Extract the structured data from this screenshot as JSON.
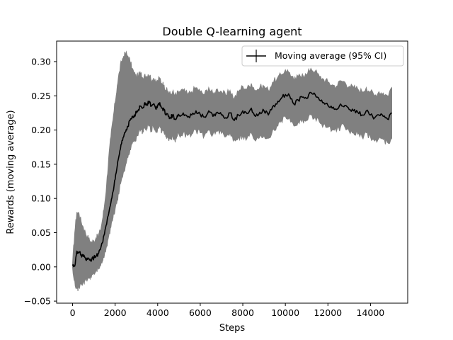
{
  "chart_data": {
    "type": "line",
    "title": "Double Q-learning agent",
    "xlabel": "Steps",
    "ylabel": "Rewards (moving average)",
    "xlim": [
      -750,
      15750
    ],
    "ylim": [
      -0.053,
      0.33
    ],
    "xticks": [
      0,
      2000,
      4000,
      6000,
      8000,
      10000,
      12000,
      14000
    ],
    "yticks": [
      -0.05,
      0.0,
      0.05,
      0.1,
      0.15,
      0.2,
      0.25,
      0.3
    ],
    "xtick_labels": [
      "0",
      "2000",
      "4000",
      "6000",
      "8000",
      "10000",
      "12000",
      "14000"
    ],
    "ytick_labels": [
      "−0.05",
      "0.00",
      "0.05",
      "0.10",
      "0.15",
      "0.20",
      "0.25",
      "0.30"
    ],
    "grid": false,
    "legend_position": "top-right",
    "colors": {
      "line": "#000000",
      "band": "#808080"
    },
    "series": [
      {
        "name": "Moving average (95% CI)",
        "x": [
          0,
          100,
          200,
          300,
          400,
          500,
          600,
          700,
          800,
          900,
          1000,
          1100,
          1200,
          1300,
          1400,
          1500,
          1600,
          1700,
          1800,
          1900,
          2000,
          2100,
          2200,
          2300,
          2400,
          2500,
          2600,
          2700,
          2800,
          2900,
          3000,
          3100,
          3200,
          3300,
          3400,
          3500,
          3600,
          3700,
          3800,
          3900,
          4000,
          4100,
          4200,
          4300,
          4400,
          4500,
          4600,
          4700,
          4800,
          4900,
          5000,
          5200,
          5400,
          5600,
          5800,
          6000,
          6200,
          6400,
          6600,
          6800,
          7000,
          7200,
          7400,
          7600,
          7800,
          8000,
          8200,
          8400,
          8600,
          8800,
          9000,
          9200,
          9400,
          9600,
          9800,
          10000,
          10200,
          10400,
          10600,
          10800,
          11000,
          11200,
          11400,
          11600,
          11800,
          12000,
          12200,
          12400,
          12600,
          12800,
          13000,
          13200,
          13400,
          13600,
          13800,
          14000,
          14200,
          14400,
          14600,
          14800,
          15000
        ],
        "y": [
          0.002,
          0.001,
          0.023,
          0.021,
          0.018,
          0.015,
          0.013,
          0.011,
          0.01,
          0.011,
          0.013,
          0.016,
          0.019,
          0.025,
          0.035,
          0.048,
          0.062,
          0.078,
          0.094,
          0.11,
          0.128,
          0.148,
          0.165,
          0.18,
          0.19,
          0.198,
          0.205,
          0.214,
          0.22,
          0.222,
          0.225,
          0.23,
          0.235,
          0.232,
          0.24,
          0.238,
          0.242,
          0.235,
          0.238,
          0.232,
          0.236,
          0.24,
          0.232,
          0.23,
          0.222,
          0.22,
          0.218,
          0.222,
          0.216,
          0.218,
          0.222,
          0.225,
          0.219,
          0.222,
          0.228,
          0.223,
          0.219,
          0.228,
          0.22,
          0.226,
          0.222,
          0.218,
          0.225,
          0.214,
          0.222,
          0.228,
          0.224,
          0.232,
          0.22,
          0.226,
          0.228,
          0.222,
          0.234,
          0.238,
          0.246,
          0.252,
          0.25,
          0.238,
          0.244,
          0.248,
          0.246,
          0.255,
          0.252,
          0.244,
          0.24,
          0.236,
          0.232,
          0.23,
          0.238,
          0.236,
          0.23,
          0.228,
          0.226,
          0.222,
          0.228,
          0.222,
          0.218,
          0.222,
          0.22,
          0.216,
          0.225
        ],
        "ci_low": [
          0.0,
          -0.02,
          -0.032,
          -0.03,
          -0.025,
          -0.022,
          -0.02,
          -0.018,
          -0.016,
          -0.012,
          -0.01,
          -0.006,
          -0.002,
          0.002,
          0.008,
          0.018,
          0.03,
          0.045,
          0.058,
          0.072,
          0.085,
          0.098,
          0.112,
          0.128,
          0.14,
          0.15,
          0.16,
          0.172,
          0.18,
          0.185,
          0.19,
          0.196,
          0.2,
          0.198,
          0.204,
          0.202,
          0.206,
          0.2,
          0.204,
          0.198,
          0.202,
          0.205,
          0.198,
          0.196,
          0.19,
          0.188,
          0.188,
          0.192,
          0.186,
          0.19,
          0.194,
          0.196,
          0.192,
          0.194,
          0.2,
          0.196,
          0.192,
          0.2,
          0.194,
          0.198,
          0.195,
          0.19,
          0.196,
          0.186,
          0.19,
          0.192,
          0.188,
          0.196,
          0.184,
          0.19,
          0.192,
          0.188,
          0.2,
          0.206,
          0.214,
          0.22,
          0.218,
          0.206,
          0.212,
          0.216,
          0.214,
          0.222,
          0.219,
          0.212,
          0.208,
          0.204,
          0.2,
          0.198,
          0.205,
          0.204,
          0.198,
          0.196,
          0.194,
          0.19,
          0.196,
          0.19,
          0.184,
          0.188,
          0.186,
          0.182,
          0.188
        ],
        "ci_high": [
          0.004,
          0.05,
          0.08,
          0.078,
          0.066,
          0.058,
          0.05,
          0.044,
          0.038,
          0.036,
          0.038,
          0.042,
          0.045,
          0.052,
          0.068,
          0.09,
          0.12,
          0.16,
          0.19,
          0.215,
          0.24,
          0.265,
          0.285,
          0.3,
          0.308,
          0.312,
          0.308,
          0.3,
          0.29,
          0.282,
          0.278,
          0.28,
          0.282,
          0.276,
          0.282,
          0.278,
          0.28,
          0.272,
          0.276,
          0.268,
          0.272,
          0.276,
          0.268,
          0.266,
          0.258,
          0.256,
          0.252,
          0.256,
          0.25,
          0.252,
          0.256,
          0.258,
          0.252,
          0.256,
          0.262,
          0.256,
          0.252,
          0.262,
          0.252,
          0.26,
          0.256,
          0.25,
          0.258,
          0.246,
          0.256,
          0.264,
          0.26,
          0.268,
          0.258,
          0.262,
          0.264,
          0.258,
          0.27,
          0.274,
          0.28,
          0.288,
          0.284,
          0.272,
          0.278,
          0.282,
          0.28,
          0.29,
          0.286,
          0.278,
          0.274,
          0.27,
          0.266,
          0.264,
          0.272,
          0.27,
          0.264,
          0.262,
          0.26,
          0.256,
          0.262,
          0.256,
          0.25,
          0.256,
          0.254,
          0.25,
          0.262
        ]
      }
    ]
  }
}
